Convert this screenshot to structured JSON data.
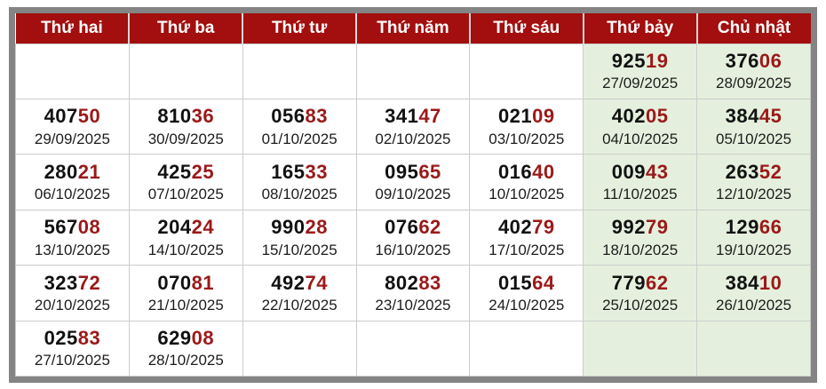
{
  "table": {
    "days": [
      "Thứ hai",
      "Thứ ba",
      "Thứ tư",
      "Thứ năm",
      "Thứ sáu",
      "Thứ bảy",
      "Chủ nhật"
    ],
    "rows": [
      {
        "cells": [
          null,
          null,
          null,
          null,
          null,
          {
            "main": "925",
            "tail": "19",
            "date": "27/09/2025"
          },
          {
            "main": "376",
            "tail": "06",
            "date": "28/09/2025"
          }
        ]
      },
      {
        "cells": [
          {
            "main": "407",
            "tail": "50",
            "date": "29/09/2025"
          },
          {
            "main": "810",
            "tail": "36",
            "date": "30/09/2025"
          },
          {
            "main": "056",
            "tail": "83",
            "date": "01/10/2025"
          },
          {
            "main": "341",
            "tail": "47",
            "date": "02/10/2025"
          },
          {
            "main": "021",
            "tail": "09",
            "date": "03/10/2025"
          },
          {
            "main": "402",
            "tail": "05",
            "date": "04/10/2025"
          },
          {
            "main": "384",
            "tail": "45",
            "date": "05/10/2025"
          }
        ]
      },
      {
        "cells": [
          {
            "main": "280",
            "tail": "21",
            "date": "06/10/2025"
          },
          {
            "main": "425",
            "tail": "25",
            "date": "07/10/2025"
          },
          {
            "main": "165",
            "tail": "33",
            "date": "08/10/2025"
          },
          {
            "main": "095",
            "tail": "65",
            "date": "09/10/2025"
          },
          {
            "main": "016",
            "tail": "40",
            "date": "10/10/2025"
          },
          {
            "main": "009",
            "tail": "43",
            "date": "11/10/2025"
          },
          {
            "main": "263",
            "tail": "52",
            "date": "12/10/2025"
          }
        ]
      },
      {
        "cells": [
          {
            "main": "567",
            "tail": "08",
            "date": "13/10/2025"
          },
          {
            "main": "204",
            "tail": "24",
            "date": "14/10/2025"
          },
          {
            "main": "990",
            "tail": "28",
            "date": "15/10/2025"
          },
          {
            "main": "076",
            "tail": "62",
            "date": "16/10/2025"
          },
          {
            "main": "402",
            "tail": "79",
            "date": "17/10/2025"
          },
          {
            "main": "992",
            "tail": "79",
            "date": "18/10/2025"
          },
          {
            "main": "129",
            "tail": "66",
            "date": "19/10/2025"
          }
        ]
      },
      {
        "cells": [
          {
            "main": "323",
            "tail": "72",
            "date": "20/10/2025"
          },
          {
            "main": "070",
            "tail": "81",
            "date": "21/10/2025"
          },
          {
            "main": "492",
            "tail": "74",
            "date": "22/10/2025"
          },
          {
            "main": "802",
            "tail": "83",
            "date": "23/10/2025"
          },
          {
            "main": "015",
            "tail": "64",
            "date": "24/10/2025"
          },
          {
            "main": "779",
            "tail": "62",
            "date": "25/10/2025"
          },
          {
            "main": "384",
            "tail": "10",
            "date": "26/10/2025"
          }
        ]
      },
      {
        "cells": [
          {
            "main": "025",
            "tail": "83",
            "date": "27/10/2025"
          },
          {
            "main": "629",
            "tail": "08",
            "date": "28/10/2025"
          },
          null,
          null,
          null,
          null,
          null
        ]
      }
    ]
  },
  "colors": {
    "header_bg": "#a30e0e",
    "digit_tail": "#9b1919",
    "weekend_bg": "#e4f0dd",
    "outer_border": "#848484",
    "cell_border": "#cccccc"
  }
}
